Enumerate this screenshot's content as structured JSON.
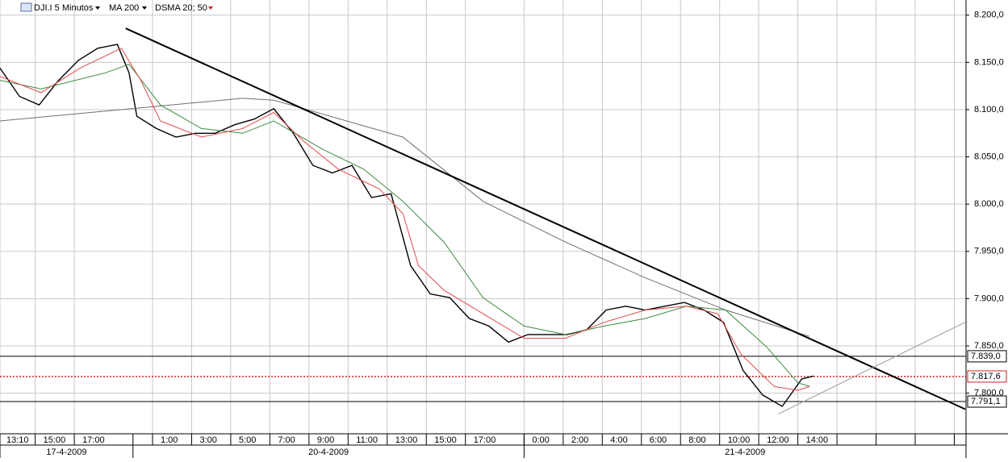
{
  "chart_data": {
    "type": "line",
    "instrument": "DJI.I 5 Minutos",
    "indicators": [
      {
        "label": "MA 200",
        "color": "#000000"
      },
      {
        "label": "DSMA 20; 50",
        "color": "#d22020"
      }
    ],
    "ylim": [
      7757,
      8216
    ],
    "yticks": [
      {
        "value": 8200,
        "label": "8.200,0"
      },
      {
        "value": 8150,
        "label": "8.150,0"
      },
      {
        "value": 8100,
        "label": "8.100,0"
      },
      {
        "value": 8050,
        "label": "8.050,0"
      },
      {
        "value": 8000,
        "label": "8.000,0"
      },
      {
        "value": 7950,
        "label": "7.950,0"
      },
      {
        "value": 7900,
        "label": "7.900,0"
      },
      {
        "value": 7850,
        "label": "7.850,0"
      },
      {
        "value": 7800,
        "label": "7.800,0"
      }
    ],
    "xlim": [
      0,
      49.4
    ],
    "xticks": [
      {
        "value": 0,
        "label": "13:10"
      },
      {
        "value": 1.8,
        "label": "15:00"
      },
      {
        "value": 3.8,
        "label": "17:00"
      },
      {
        "value": 7.8,
        "label": "1:00"
      },
      {
        "value": 9.8,
        "label": "3:00"
      },
      {
        "value": 11.8,
        "label": "5:00"
      },
      {
        "value": 13.8,
        "label": "7:00"
      },
      {
        "value": 15.8,
        "label": "9:00"
      },
      {
        "value": 17.8,
        "label": "11:00"
      },
      {
        "value": 19.8,
        "label": "13:00"
      },
      {
        "value": 21.8,
        "label": "15:00"
      },
      {
        "value": 23.8,
        "label": "17:00"
      },
      {
        "value": 26.8,
        "label": "0:00"
      },
      {
        "value": 28.8,
        "label": "2:00"
      },
      {
        "value": 30.8,
        "label": "4:00"
      },
      {
        "value": 32.8,
        "label": "6:00"
      },
      {
        "value": 34.8,
        "label": "8:00"
      },
      {
        "value": 36.8,
        "label": "10:00"
      },
      {
        "value": 38.8,
        "label": "12:00"
      },
      {
        "value": 40.8,
        "label": "14:00"
      }
    ],
    "extra_gridlines_x": [
      42.8,
      44.8,
      46.8,
      48.8
    ],
    "dates": [
      {
        "label": "17-4-2009",
        "start": 0,
        "end": 6.8
      },
      {
        "label": "20-4-2009",
        "start": 6.8,
        "end": 26.8
      },
      {
        "label": "21-4-2009",
        "start": 26.8,
        "end": 49.4
      }
    ],
    "grid": true,
    "series": [
      {
        "name": "DJI.I",
        "color": "#000000",
        "width": 1.4,
        "x": [
          0,
          1,
          2,
          3,
          4,
          5,
          6,
          6.6,
          7,
          8,
          9,
          10,
          11,
          12,
          13,
          14,
          15,
          16,
          17,
          18,
          19,
          20,
          21,
          22,
          23,
          24,
          25,
          26,
          27,
          28,
          29,
          30,
          31,
          32,
          33,
          34,
          35,
          36,
          37,
          38,
          39,
          40,
          41,
          41.6
        ],
        "values": [
          8144,
          8114,
          8105,
          8131,
          8152,
          8165,
          8169,
          8139,
          8093,
          8080,
          8071,
          8075,
          8075,
          8084,
          8090,
          8101,
          8075,
          8041,
          8033,
          8041,
          8007,
          8011,
          7935,
          7905,
          7901,
          7879,
          7871,
          7854,
          7862,
          7862,
          7862,
          7867,
          7888,
          7892,
          7888,
          7892,
          7896,
          7888,
          7875,
          7824,
          7798,
          7786,
          7815,
          7818
        ]
      },
      {
        "name": "MA 200",
        "color": "#6f6f6f",
        "width": 1,
        "x": [
          0,
          12.4,
          14,
          20.6,
          24.7,
          28.9,
          33,
          37.1,
          41.4
        ],
        "values": [
          8088,
          8112,
          8110,
          8071,
          8003,
          7960,
          7922,
          7888,
          7860
        ]
      },
      {
        "name": "DSMA 50",
        "color": "#3e8a3e",
        "width": 1,
        "x": [
          0,
          2.1,
          5.4,
          6.6,
          8.2,
          10.3,
          12.4,
          14,
          16.5,
          18.6,
          20.6,
          22.7,
          24.7,
          26.8,
          28.9,
          30.9,
          33,
          35.1,
          37.1,
          39.2,
          40.8,
          41.4
        ],
        "values": [
          8131,
          8122,
          8139,
          8148,
          8105,
          8080,
          8075,
          8088,
          8058,
          8037,
          8003,
          7960,
          7901,
          7871,
          7862,
          7871,
          7879,
          7892,
          7888,
          7849,
          7811,
          7807
        ]
      },
      {
        "name": "DSMA 20",
        "color": "#e04a4a",
        "width": 1,
        "x": [
          0,
          2.1,
          4.1,
          6.2,
          7.2,
          8.2,
          10.3,
          12.4,
          14,
          15.5,
          17.3,
          19.4,
          20.6,
          21.4,
          22.7,
          24.7,
          26.8,
          28.9,
          30.9,
          33,
          35.1,
          36.7,
          37.9,
          39.6,
          40.8,
          41.4
        ],
        "values": [
          8135,
          8118,
          8144,
          8165,
          8131,
          8088,
          8071,
          8080,
          8097,
          8067,
          8037,
          8016,
          7990,
          7935,
          7909,
          7884,
          7858,
          7858,
          7875,
          7888,
          7892,
          7884,
          7841,
          7807,
          7803,
          7807
        ]
      }
    ],
    "trendlines": [
      {
        "color": "#000000",
        "width": 2,
        "x": [
          6.43,
          49.36
        ],
        "values": [
          8186,
          7783
        ]
      },
      {
        "color": "#9a9a9a",
        "width": 1,
        "x": [
          39.8,
          49.36
        ],
        "values": [
          7778,
          7875
        ]
      }
    ],
    "levels": [
      {
        "value": 7839,
        "label": "7.839,0",
        "color": "#000000",
        "dashed": false
      },
      {
        "value": 7817.6,
        "label": "7.817,6",
        "color": "#d22020",
        "dashed": true
      },
      {
        "value": 7791.1,
        "label": "7.791,1",
        "color": "#000000",
        "dashed": false
      }
    ]
  }
}
